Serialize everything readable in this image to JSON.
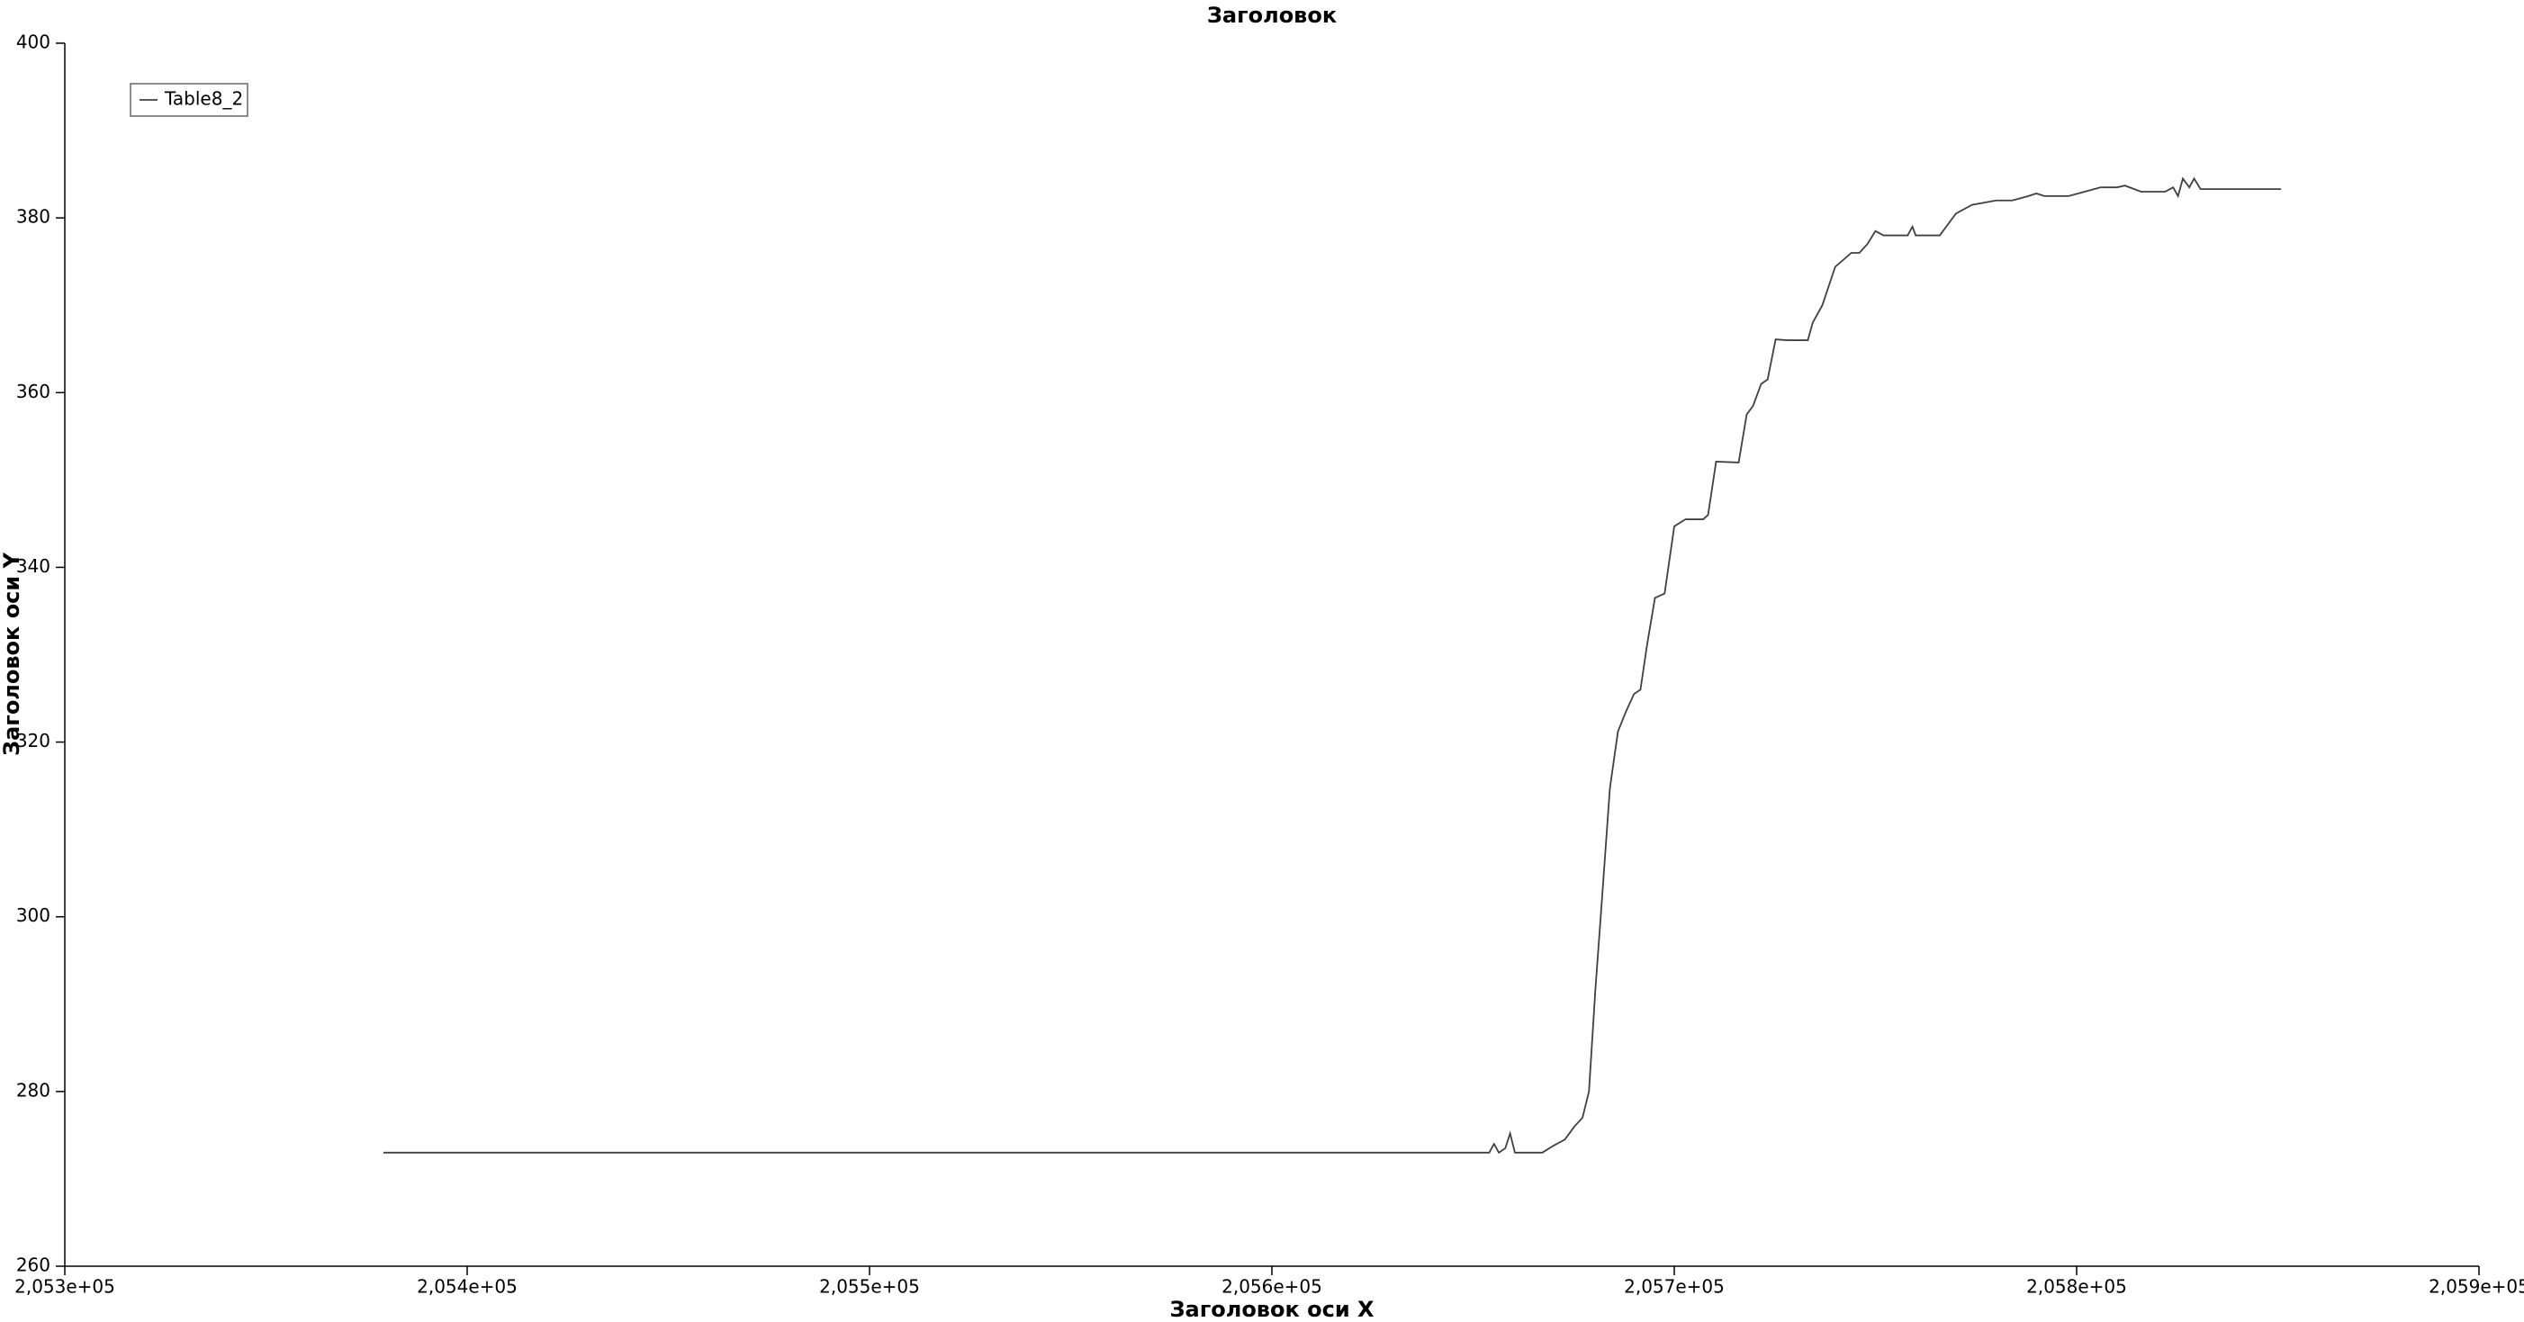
{
  "chart_data": {
    "type": "line",
    "title": "Заголовок",
    "x_label": "Заголовок оси X",
    "y_label": "Заголовок оси Y",
    "legend": "upper-left",
    "grid": false,
    "xlim": [
      205300,
      205900
    ],
    "xticks": [
      {
        "value": 205300,
        "label": "2,053e+05"
      },
      {
        "value": 205400,
        "label": "2,054e+05"
      },
      {
        "value": 205500,
        "label": "2,055e+05"
      },
      {
        "value": 205600,
        "label": "2,056e+05"
      },
      {
        "value": 205700,
        "label": "2,057e+05"
      },
      {
        "value": 205800,
        "label": "2,058e+05"
      },
      {
        "value": 205900,
        "label": "2,059e+05"
      }
    ],
    "ylim": [
      260,
      400
    ],
    "yticks": [
      260,
      280,
      300,
      320,
      340,
      360,
      380,
      400
    ],
    "x": [
      205379.2,
      205654,
      205655.2,
      205656.4,
      205658,
      205659.2,
      205660.4,
      205667.2,
      205670,
      205672.8,
      205675.2,
      205677.2,
      205678.8,
      205680.4,
      205682,
      205684,
      205686,
      205688,
      205690,
      205691.6,
      205693.2,
      205695.2,
      205697.6,
      205700,
      205702.8,
      205707.2,
      205708.4,
      205710.4,
      205716,
      205718,
      205719.6,
      205721.6,
      205723.2,
      205725.2,
      205728,
      205733.2,
      205734.4,
      205736.8,
      205740,
      205744,
      205746,
      205748,
      205750,
      205752,
      205758,
      205759.2,
      205760,
      205766,
      205770,
      205774,
      205780,
      205784,
      205788,
      205790,
      205792,
      205798,
      205802,
      205806,
      205810,
      205812,
      205816,
      205822,
      205824,
      205825.2,
      205826.4,
      205828,
      205829.2,
      205830.8,
      205850.8
    ],
    "series": [
      {
        "name": "Table8_2",
        "color": "#404040",
        "values": [
          273,
          273,
          274,
          273,
          273.5,
          275.2,
          273,
          273,
          273.8,
          274.5,
          276,
          277,
          280,
          291.7,
          301.8,
          314.7,
          321.2,
          323.5,
          325.5,
          326,
          331,
          336.5,
          337,
          344.7,
          345.5,
          345.5,
          346,
          352.1,
          352,
          357.5,
          358.5,
          361,
          361.5,
          366.1,
          366,
          366,
          368,
          370,
          374.4,
          376,
          376,
          377,
          378.5,
          378,
          378,
          379,
          378,
          378,
          380.5,
          381.5,
          382,
          382,
          382.5,
          382.8,
          382.5,
          382.5,
          383,
          383.5,
          383.5,
          383.7,
          383,
          383,
          383.5,
          382.5,
          384.5,
          383.5,
          384.5,
          383.3,
          383.3
        ]
      }
    ]
  }
}
